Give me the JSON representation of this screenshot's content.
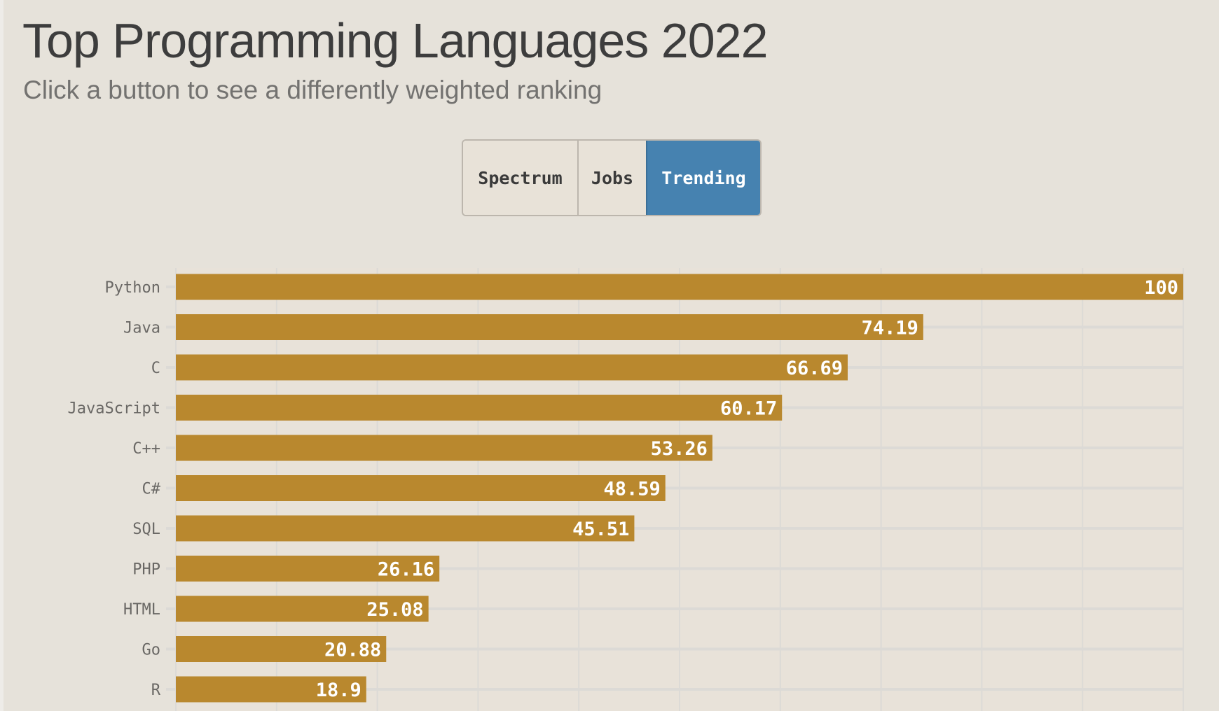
{
  "header": {
    "title": "Top Programming Languages 2022",
    "subtitle": "Click a button to see a differently weighted ranking"
  },
  "buttons": [
    {
      "label": "Spectrum",
      "active": false
    },
    {
      "label": "Jobs",
      "active": false
    },
    {
      "label": "Trending",
      "active": true
    }
  ],
  "colors": {
    "bar": "#b9882e",
    "active_button": "#4682b0",
    "grid": "#dcdad6"
  },
  "chart_data": {
    "type": "bar",
    "orientation": "horizontal",
    "title": "",
    "xlabel": "",
    "ylabel": "",
    "xlim": [
      0,
      100
    ],
    "grid": true,
    "categories": [
      "Python",
      "Java",
      "C",
      "JavaScript",
      "C++",
      "C#",
      "SQL",
      "PHP",
      "HTML",
      "Go",
      "R"
    ],
    "values": [
      100,
      74.19,
      66.69,
      60.17,
      53.26,
      48.59,
      45.51,
      26.16,
      25.08,
      20.88,
      18.9
    ],
    "value_labels": [
      "100",
      "74.19",
      "66.69",
      "60.17",
      "53.26",
      "48.59",
      "45.51",
      "26.16",
      "25.08",
      "20.88",
      "18.9"
    ]
  }
}
